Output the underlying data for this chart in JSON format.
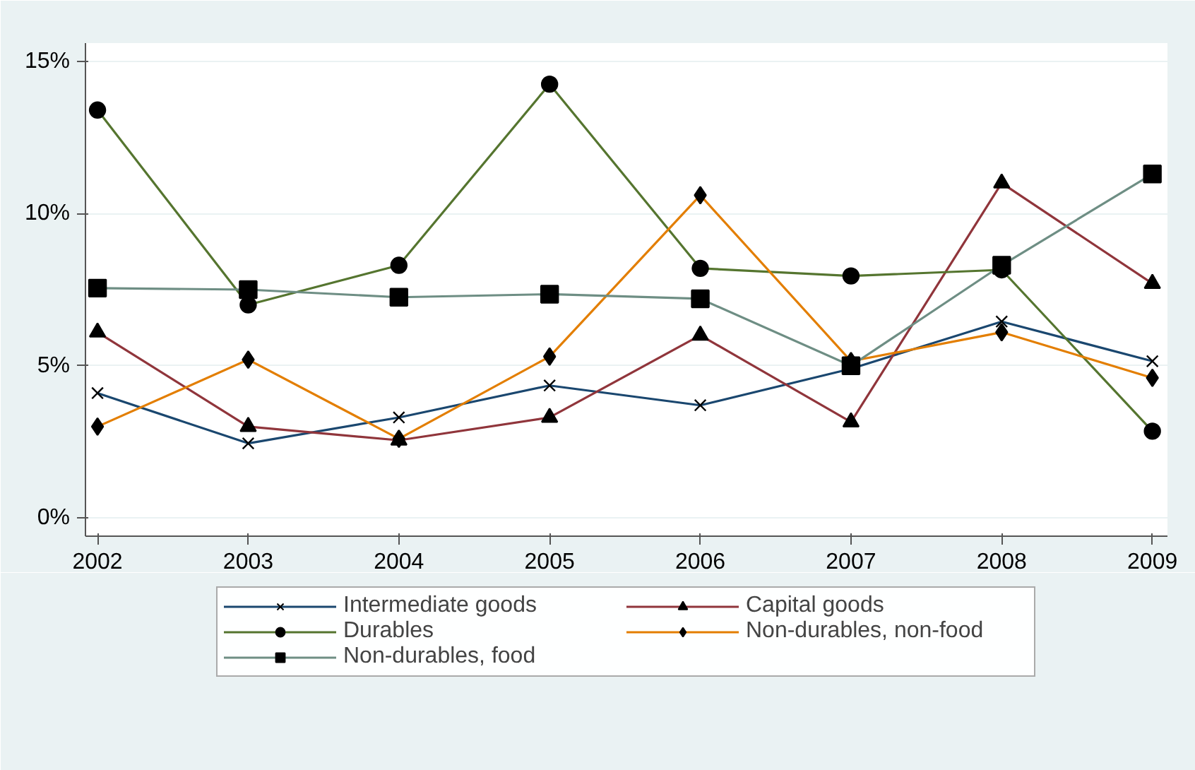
{
  "chart_data": {
    "type": "line",
    "x": [
      2002,
      2003,
      2004,
      2005,
      2006,
      2007,
      2008,
      2009
    ],
    "xlim": [
      2001.92,
      2009.1
    ],
    "xticks": [
      2002,
      2003,
      2004,
      2005,
      2006,
      2007,
      2008,
      2009
    ],
    "ylim": [
      -0.6,
      15.6
    ],
    "yticks": [
      {
        "value": 0,
        "label": "0%"
      },
      {
        "value": 5,
        "label": "5%"
      },
      {
        "value": 10,
        "label": "10%"
      },
      {
        "value": 15,
        "label": "15%"
      }
    ],
    "grid": "y",
    "legend": "bottom",
    "line_style": "solid",
    "series": [
      {
        "name": "Intermediate goods",
        "color": "#1a476f",
        "marker": "cross",
        "values": [
          4.1,
          2.45,
          3.3,
          4.35,
          3.7,
          4.9,
          6.45,
          5.15
        ]
      },
      {
        "name": "Capital goods",
        "color": "#90353b",
        "marker": "triangle",
        "values": [
          6.1,
          3.0,
          2.55,
          3.3,
          6.0,
          3.15,
          11.0,
          7.7
        ]
      },
      {
        "name": "Durables",
        "color": "#55752f",
        "marker": "circle",
        "values": [
          13.4,
          7.0,
          8.3,
          14.25,
          8.2,
          7.95,
          8.15,
          2.85
        ]
      },
      {
        "name": "Non-durables, non-food",
        "color": "#e37e00",
        "marker": "diamond",
        "values": [
          3.0,
          5.2,
          2.6,
          5.3,
          10.6,
          5.15,
          6.1,
          4.6
        ]
      },
      {
        "name": "Non-durables, food",
        "color": "#6e8e84",
        "marker": "square",
        "values": [
          7.55,
          7.5,
          7.25,
          7.35,
          7.2,
          5.0,
          8.3,
          11.3
        ]
      }
    ]
  }
}
